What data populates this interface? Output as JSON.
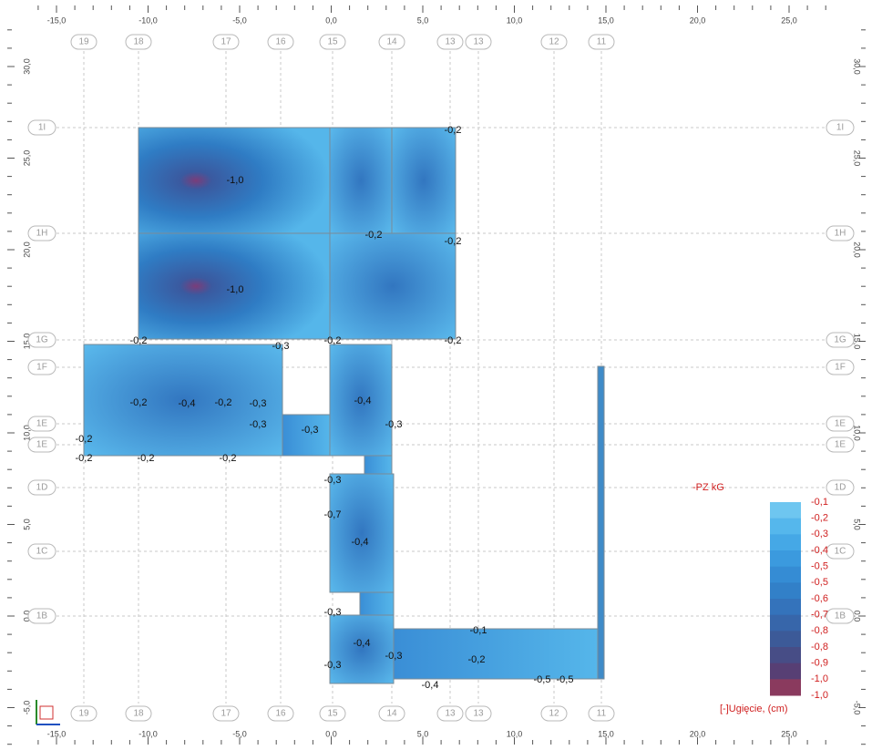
{
  "top_axis": {
    "ticks": [
      "-15,0",
      "-10,0",
      "-5,0",
      "0,0",
      "5,0",
      "10,0",
      "15,0",
      "20,0",
      "25,0"
    ]
  },
  "side_axis": {
    "ticks": [
      "30,0",
      "25,0",
      "20,0",
      "15,0",
      "10,0",
      "5,0",
      "0,0",
      "-5,0"
    ]
  },
  "columns": [
    "19",
    "18",
    "17",
    "16",
    "15",
    "14",
    "13",
    "13",
    "12",
    "11"
  ],
  "rows": [
    "1I",
    "1H",
    "1G",
    "1F",
    "1E",
    "1E",
    "1D",
    "1C",
    "1B"
  ],
  "contour_labels": [
    "-1,0",
    "-1,0",
    "-0,2",
    "-0,2",
    "-0,2",
    "-0,2",
    "-0,2",
    "-0,2",
    "-0,3",
    "-0,4",
    "-0,3",
    "-0,4",
    "-0,3",
    "-0,3",
    "-0,3",
    "-0,2",
    "-0,2",
    "-0,2",
    "-0,2",
    "-0,3",
    "-0,7",
    "-0,4",
    "-0,3",
    "-0,4",
    "-0,3",
    "-0,3",
    "-0,4",
    "-0,2",
    "-0,5",
    "-0,5",
    "-0,1",
    "-0,2",
    "-0,2"
  ],
  "legend": {
    "title": "-PZ  kG",
    "values": [
      "-0,1",
      "-0,2",
      "-0,3",
      "-0,4",
      "-0,5",
      "-0,5",
      "-0,6",
      "-0,7",
      "-0,8",
      "-0,8",
      "-0,9",
      "-1,0",
      "-1,0"
    ],
    "footer": "[-]Ugięcie, (cm)"
  }
}
